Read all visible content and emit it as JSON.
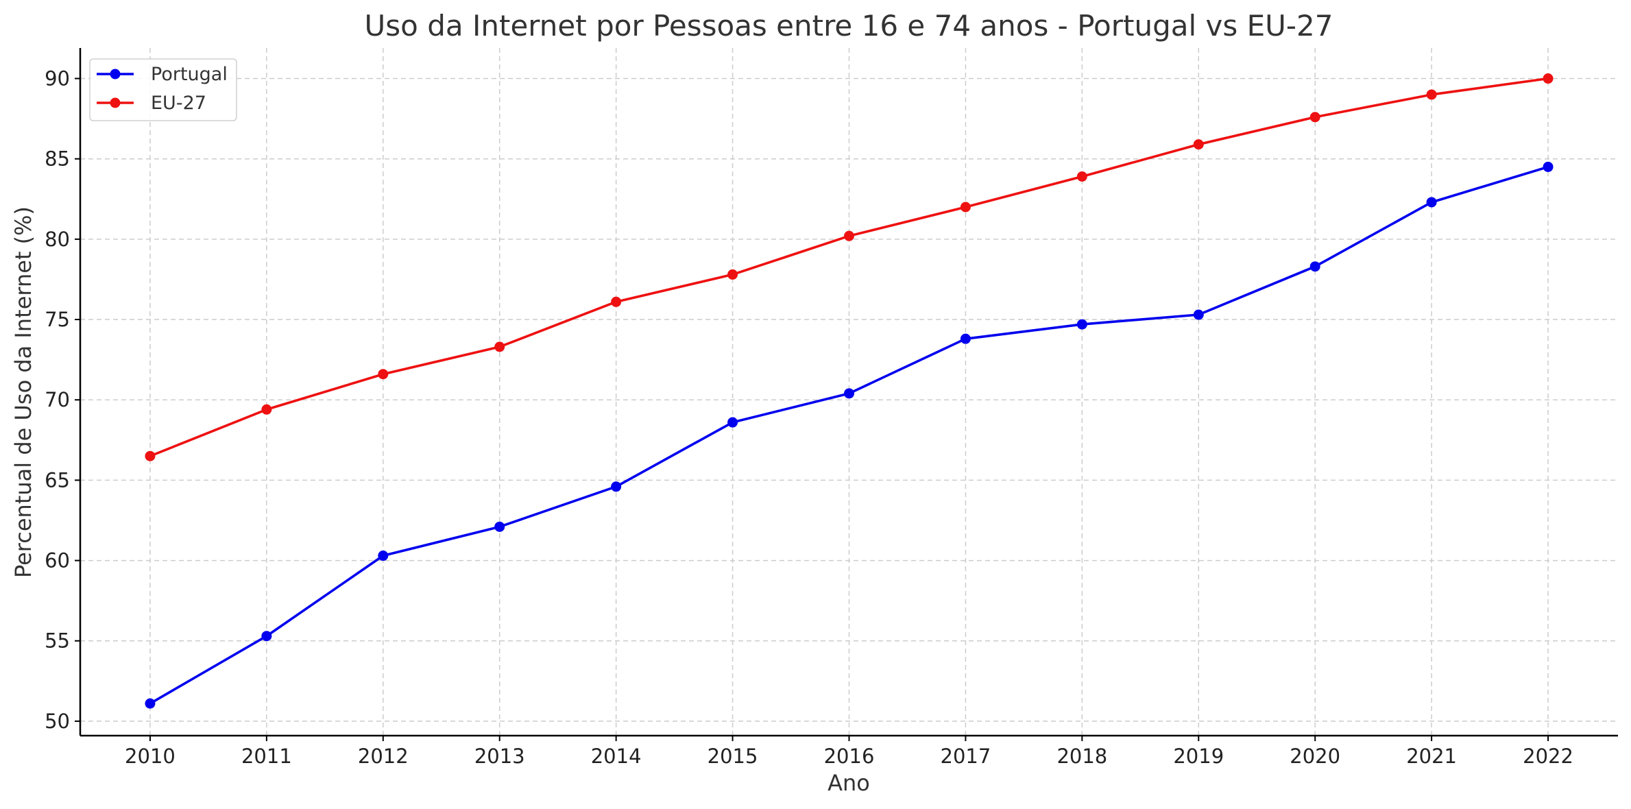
{
  "chart_data": {
    "type": "line",
    "title": "Uso da Internet por Pessoas entre 16 e 74 anos - Portugal vs EU-27",
    "xlabel": "Ano",
    "ylabel": "Percentual de Uso da Internet (%)",
    "x": [
      2010,
      2011,
      2012,
      2013,
      2014,
      2015,
      2016,
      2017,
      2018,
      2019,
      2020,
      2021,
      2022
    ],
    "xlim": [
      2009.4,
      2022.6
    ],
    "ylim": [
      49.1,
      91.9
    ],
    "yticks": [
      50,
      55,
      60,
      65,
      70,
      75,
      80,
      85,
      90
    ],
    "grid": true,
    "legend_position": "top-left",
    "series": [
      {
        "name": "Portugal",
        "color": "#0000ee",
        "values": [
          51.1,
          55.3,
          60.3,
          62.1,
          64.6,
          68.6,
          70.4,
          73.8,
          74.7,
          75.3,
          78.3,
          82.3,
          84.5
        ]
      },
      {
        "name": "EU-27",
        "color": "#ee1111",
        "values": [
          66.5,
          69.4,
          71.6,
          73.3,
          76.1,
          77.8,
          80.2,
          82.0,
          83.9,
          85.9,
          87.6,
          89.0,
          90.0
        ]
      }
    ]
  }
}
